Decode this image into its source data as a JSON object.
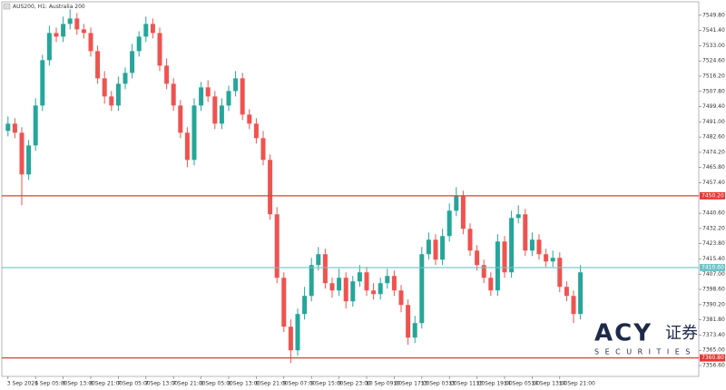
{
  "chart_data": {
    "type": "candlestick",
    "title": "AUS200, H1: Australia 200",
    "x": [
      "3 Sep 2021",
      null,
      null,
      null,
      "6 Sep 05:00",
      null,
      null,
      null,
      "6 Sep 13:00",
      null,
      null,
      null,
      "6 Sep 21:00",
      null,
      null,
      null,
      "7 Sep 05:00",
      null,
      null,
      null,
      "7 Sep 13:00",
      null,
      null,
      null,
      "7 Sep 21:00",
      null,
      null,
      null,
      "8 Sep 05:00",
      null,
      null,
      null,
      "8 Sep 13:00",
      null,
      null,
      null,
      "8 Sep 21:00",
      null,
      null,
      null,
      "9 Sep 07:00",
      null,
      null,
      null,
      "9 Sep 15:00",
      null,
      null,
      null,
      "9 Sep 23:00",
      null,
      null,
      null,
      "10 Sep 09:00",
      null,
      null,
      null,
      "10 Sep 17:00",
      null,
      null,
      null,
      "13 Sep 03:00",
      null,
      null,
      null,
      "13 Sep 11:00",
      null,
      null,
      null,
      "13 Sep 19:00",
      null,
      null,
      null,
      "14 Sep 05:00",
      null,
      null,
      null,
      "14 Sep 13:00",
      null,
      null,
      null,
      "14 Sep 21:00",
      null,
      null,
      null
    ],
    "open": [
      7486,
      7490,
      7485,
      7462,
      7478,
      7500,
      7525,
      7540,
      7538,
      7545,
      7548,
      7542,
      7540,
      7530,
      7515,
      7505,
      7500,
      7512,
      7518,
      7530,
      7538,
      7545,
      7540,
      7522,
      7512,
      7500,
      7485,
      7470,
      7500,
      7510,
      7505,
      7490,
      7500,
      7508,
      7515,
      7495,
      7490,
      7482,
      7470,
      7440,
      7405,
      7378,
      7365,
      7385,
      7395,
      7412,
      7418,
      7402,
      7398,
      7405,
      7392,
      7403,
      7408,
      7398,
      7396,
      7402,
      7406,
      7398,
      7390,
      7372,
      7380,
      7418,
      7426,
      7415,
      7428,
      7442,
      7450,
      7432,
      7420,
      7412,
      7405,
      7398,
      7425,
      7408,
      7438,
      7440,
      7420,
      7426,
      7418,
      7414,
      7416,
      7400,
      7395,
      7385
    ],
    "high": [
      7494,
      7493,
      7488,
      7481,
      7504,
      7528,
      7544,
      7543,
      7549,
      7553,
      7551,
      7545,
      7543,
      7533,
      7519,
      7508,
      7516,
      7521,
      7534,
      7541,
      7549,
      7548,
      7543,
      7526,
      7515,
      7503,
      7488,
      7504,
      7513,
      7514,
      7508,
      7504,
      7511,
      7519,
      7518,
      7498,
      7493,
      7486,
      7473,
      7444,
      7408,
      7382,
      7388,
      7400,
      7416,
      7422,
      7421,
      7405,
      7410,
      7408,
      7406,
      7412,
      7411,
      7402,
      7405,
      7410,
      7409,
      7401,
      7393,
      7384,
      7422,
      7430,
      7429,
      7432,
      7446,
      7455,
      7453,
      7435,
      7423,
      7415,
      7408,
      7429,
      7428,
      7442,
      7445,
      7443,
      7430,
      7429,
      7421,
      7420,
      7419,
      7403,
      7398,
      7412
    ],
    "low": [
      7483,
      7482,
      7445,
      7459,
      7475,
      7497,
      7522,
      7535,
      7535,
      7542,
      7539,
      7537,
      7527,
      7512,
      7501,
      7497,
      7497,
      7509,
      7515,
      7527,
      7535,
      7537,
      7519,
      7509,
      7497,
      7482,
      7466,
      7467,
      7497,
      7502,
      7487,
      7487,
      7497,
      7505,
      7492,
      7487,
      7479,
      7467,
      7437,
      7402,
      7375,
      7358,
      7362,
      7382,
      7392,
      7409,
      7399,
      7394,
      7395,
      7388,
      7389,
      7400,
      7395,
      7393,
      7393,
      7399,
      7395,
      7386,
      7368,
      7369,
      7377,
      7415,
      7412,
      7412,
      7425,
      7439,
      7429,
      7417,
      7409,
      7402,
      7395,
      7395,
      7405,
      7405,
      7435,
      7417,
      7417,
      7415,
      7411,
      7411,
      7397,
      7392,
      7380,
      7382
    ],
    "close": [
      7490,
      7485,
      7462,
      7478,
      7500,
      7525,
      7540,
      7538,
      7545,
      7548,
      7542,
      7540,
      7530,
      7515,
      7505,
      7500,
      7512,
      7518,
      7530,
      7538,
      7545,
      7540,
      7522,
      7512,
      7500,
      7485,
      7470,
      7500,
      7510,
      7505,
      7490,
      7500,
      7508,
      7515,
      7495,
      7490,
      7482,
      7470,
      7440,
      7405,
      7378,
      7365,
      7385,
      7395,
      7412,
      7418,
      7402,
      7398,
      7405,
      7392,
      7403,
      7408,
      7398,
      7396,
      7402,
      7406,
      7398,
      7390,
      7372,
      7380,
      7418,
      7426,
      7415,
      7428,
      7442,
      7450,
      7432,
      7420,
      7412,
      7405,
      7398,
      7425,
      7408,
      7438,
      7440,
      7420,
      7426,
      7418,
      7414,
      7416,
      7400,
      7395,
      7385,
      7408
    ],
    "up_color": "#26a69a",
    "down_color": "#ef5350",
    "ylim": [
      7350.6,
      7557.2
    ],
    "yticks": [
      {
        "value": 7356.6,
        "label": "7356.60"
      },
      {
        "value": 7365.0,
        "label": "7365.00"
      },
      {
        "value": 7373.4,
        "label": "7373.40"
      },
      {
        "value": 7381.8,
        "label": "7381.80"
      },
      {
        "value": 7390.2,
        "label": "7390.20"
      },
      {
        "value": 7398.6,
        "label": "7398.60"
      },
      {
        "value": 7407.0,
        "label": "7407.00"
      },
      {
        "value": 7415.4,
        "label": "7415.40"
      },
      {
        "value": 7423.8,
        "label": "7423.80"
      },
      {
        "value": 7432.2,
        "label": "7432.20"
      },
      {
        "value": 7440.6,
        "label": "7440.60"
      },
      {
        "value": 7457.4,
        "label": "7457.40"
      },
      {
        "value": 7465.8,
        "label": "7465.80"
      },
      {
        "value": 7474.2,
        "label": "7474.20"
      },
      {
        "value": 7482.6,
        "label": "7482.60"
      },
      {
        "value": 7491.0,
        "label": "7491.00"
      },
      {
        "value": 7499.4,
        "label": "7499.40"
      },
      {
        "value": 7507.8,
        "label": "7507.80"
      },
      {
        "value": 7516.2,
        "label": "7516.20"
      },
      {
        "value": 7524.6,
        "label": "7524.60"
      },
      {
        "value": 7533.0,
        "label": "7533.00"
      },
      {
        "value": 7541.4,
        "label": "7541.40"
      },
      {
        "value": 7549.8,
        "label": "7549.80"
      }
    ],
    "lines": [
      {
        "value": 7450.2,
        "label": "7450.20",
        "color": "#e53935"
      },
      {
        "value": 7360.8,
        "label": "7360.80",
        "color": "#e53935"
      },
      {
        "value": 7410.6,
        "label": "7410.60",
        "color": "#6fc3c8"
      }
    ]
  },
  "watermark": {
    "brand": "ACY",
    "chinese": "证券",
    "sub": "SECURITIES"
  }
}
